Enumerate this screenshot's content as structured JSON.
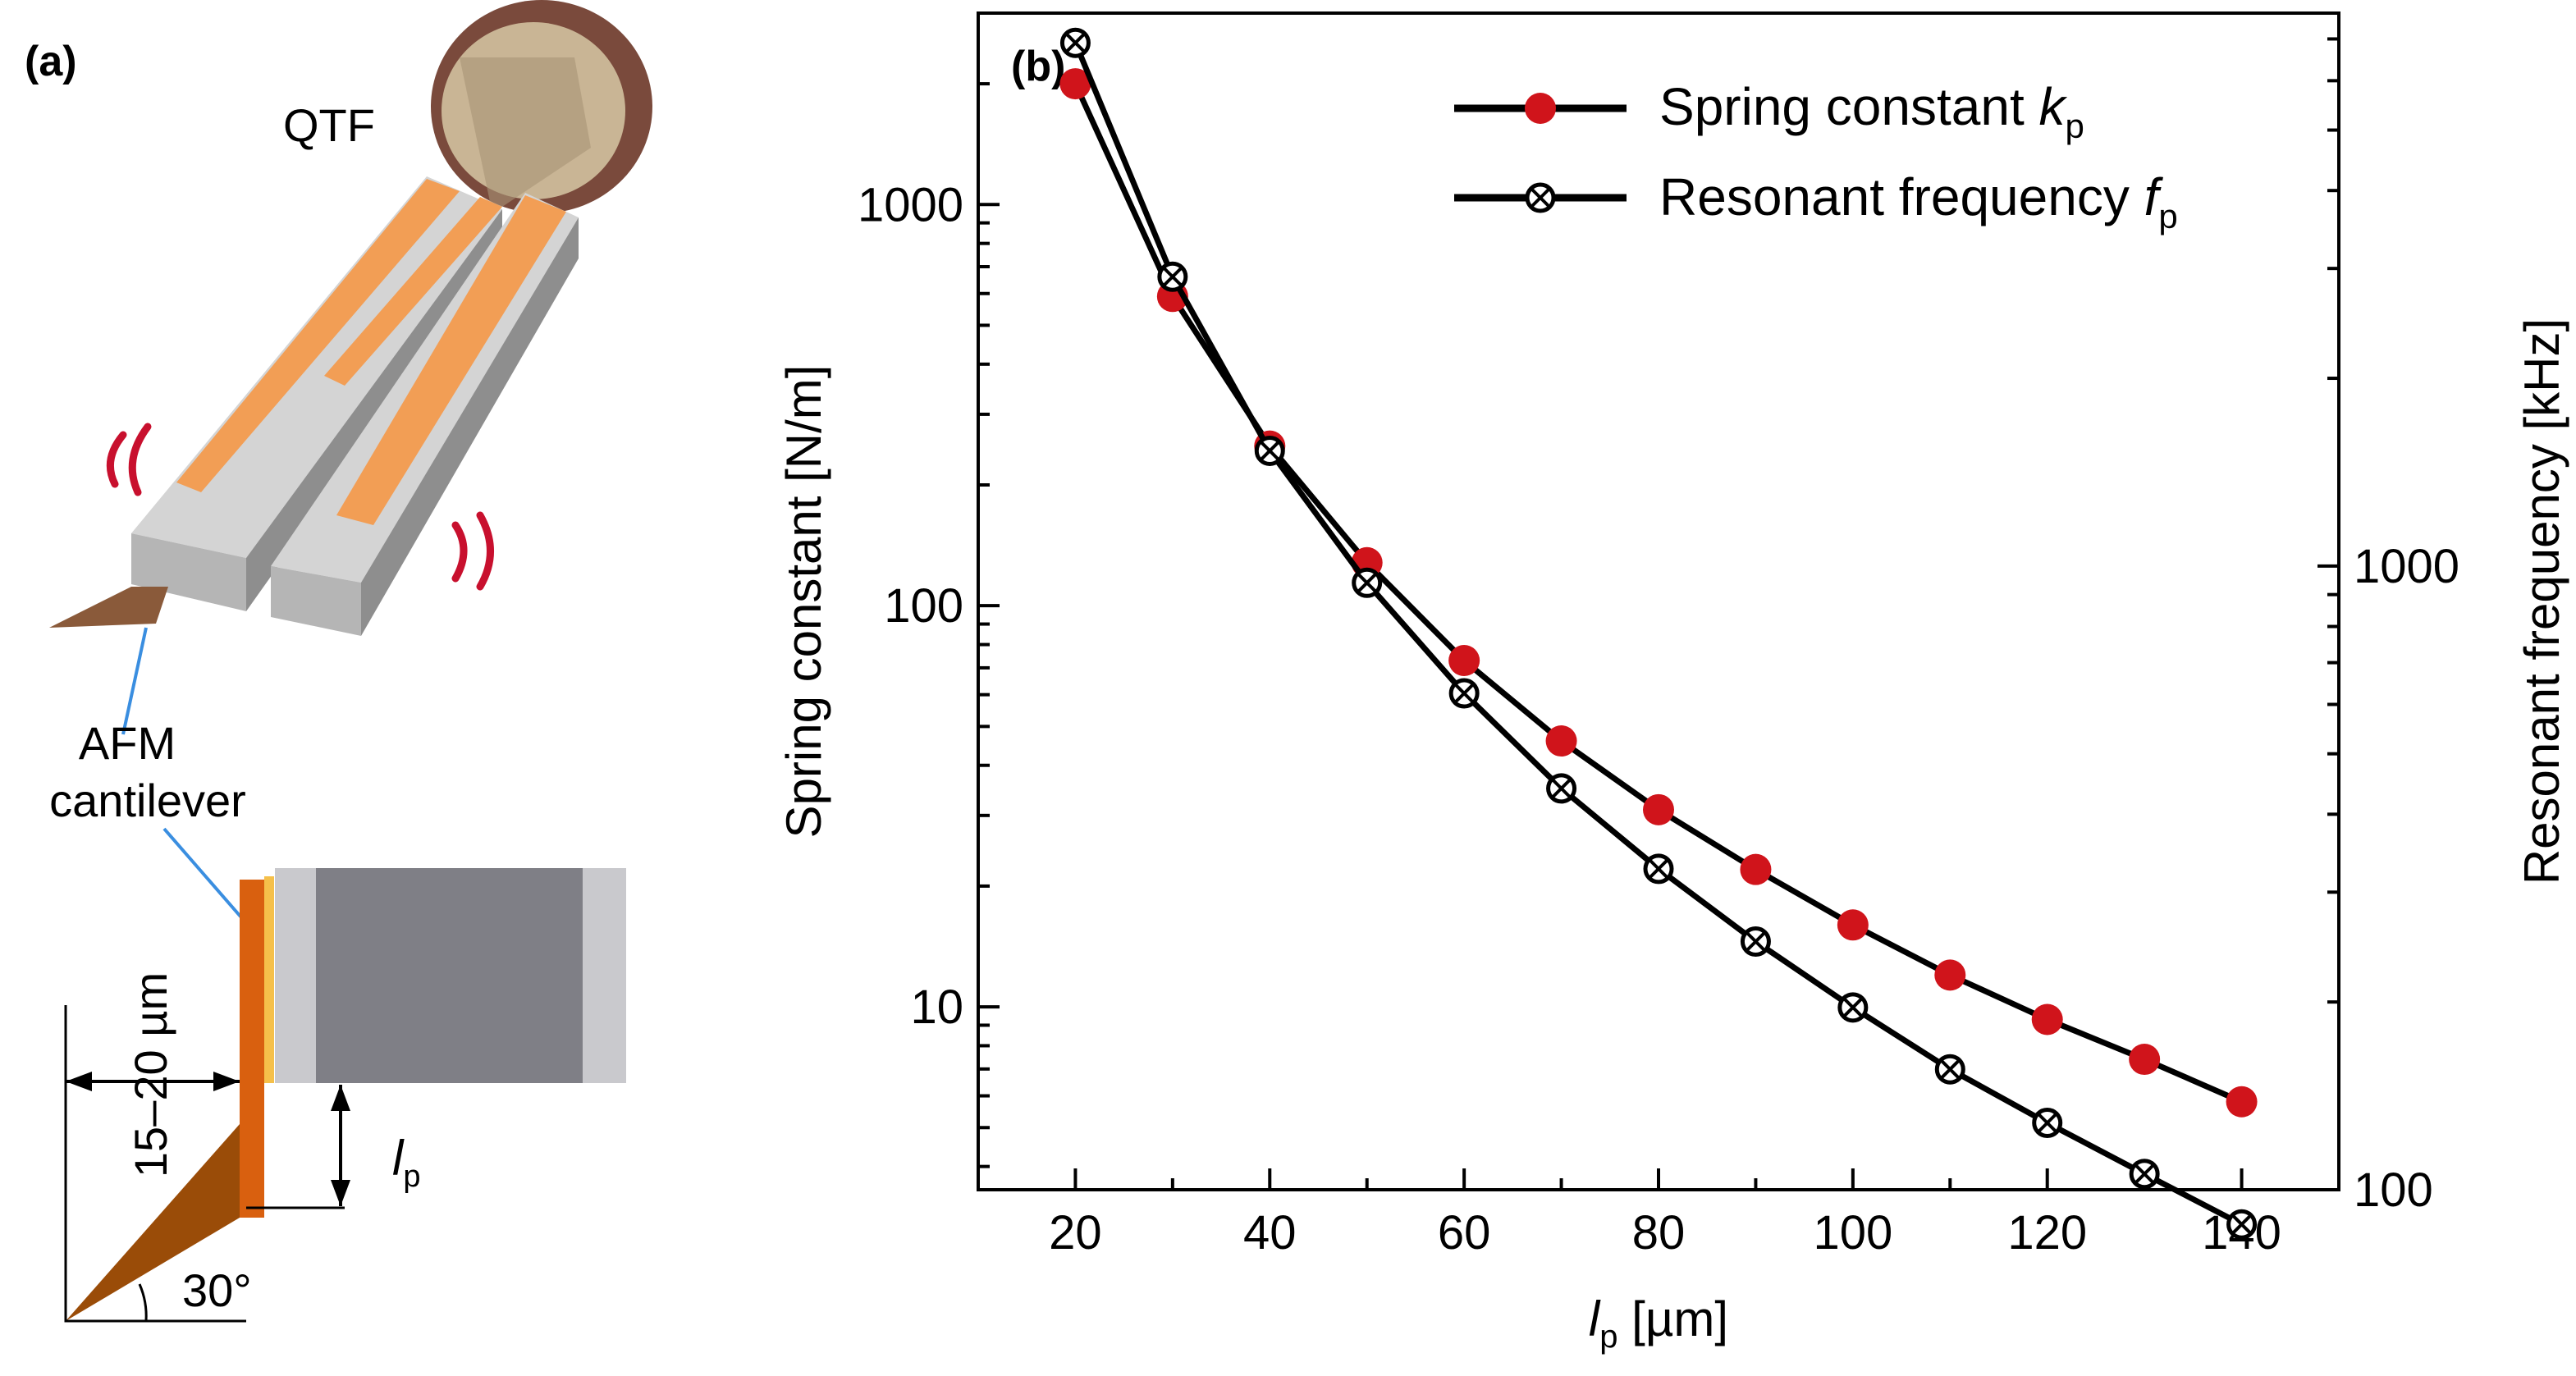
{
  "panel_a": {
    "panel_label": "(a)",
    "qtf_label": "QTF",
    "afm_label_line1": "AFM",
    "afm_label_line2": "cantilever",
    "thickness_label": "15–20 µm",
    "length_label_main": "l",
    "length_label_sub": "p",
    "angle_label": "30°",
    "colors": {
      "electrode": "#f29e55",
      "prong": "#cdcdcd",
      "cantilever": "#d9600f",
      "tip": "#9a4c08",
      "vibration": "#c8102e",
      "pointer": "#3a8ee0",
      "block_dark": "#7f7f86",
      "block_light": "#c9c9cd",
      "can_outer": "#7a4a3c",
      "can_inner": "#c9b595"
    }
  },
  "chart_data": {
    "type": "line",
    "panel_label": "(b)",
    "x": [
      20,
      30,
      40,
      50,
      60,
      70,
      80,
      90,
      100,
      110,
      120,
      130,
      140
    ],
    "xlim": [
      10,
      150
    ],
    "xticks": [
      20,
      40,
      60,
      80,
      100,
      120,
      140
    ],
    "xlabel_main": "l",
    "xlabel_sub": "p",
    "xlabel_unit": " [µm]",
    "ylabel_left": "Spring constant [N/m]",
    "ylabel_right": "Resonant frequency [kHz]",
    "yscale_left": "log",
    "ylim_left": [
      3.5,
      3000
    ],
    "yticks_left": [
      {
        "value": 10,
        "label": "10"
      },
      {
        "value": 100,
        "label": "100"
      },
      {
        "value": 1000,
        "label": "1000"
      }
    ],
    "yscale_right": "log",
    "ylim_right": [
      100,
      7700
    ],
    "yticks_right": [
      {
        "value": 100,
        "label": "100"
      },
      {
        "value": 1000,
        "label": "1000"
      }
    ],
    "series": [
      {
        "name": "Spring constant k_p",
        "legend_main": "Spring constant ",
        "legend_var": "k",
        "legend_sub": "p",
        "axis": "left",
        "marker": "filled-circle",
        "color": "#d0141b",
        "values": [
          2000,
          590,
          250,
          128,
          73,
          46,
          31,
          22,
          16,
          12,
          9.3,
          7.4,
          5.8
        ]
      },
      {
        "name": "Resonant frequency f_p",
        "legend_main": "Resonant frequency ",
        "legend_var": "f",
        "legend_sub": "p",
        "axis": "right",
        "marker": "circle-cross",
        "color": "#000000",
        "values": [
          6900,
          2910,
          1530,
          940,
          625,
          440,
          327,
          250,
          196,
          156,
          128,
          106,
          88
        ]
      }
    ],
    "legend_position": "top-right"
  }
}
